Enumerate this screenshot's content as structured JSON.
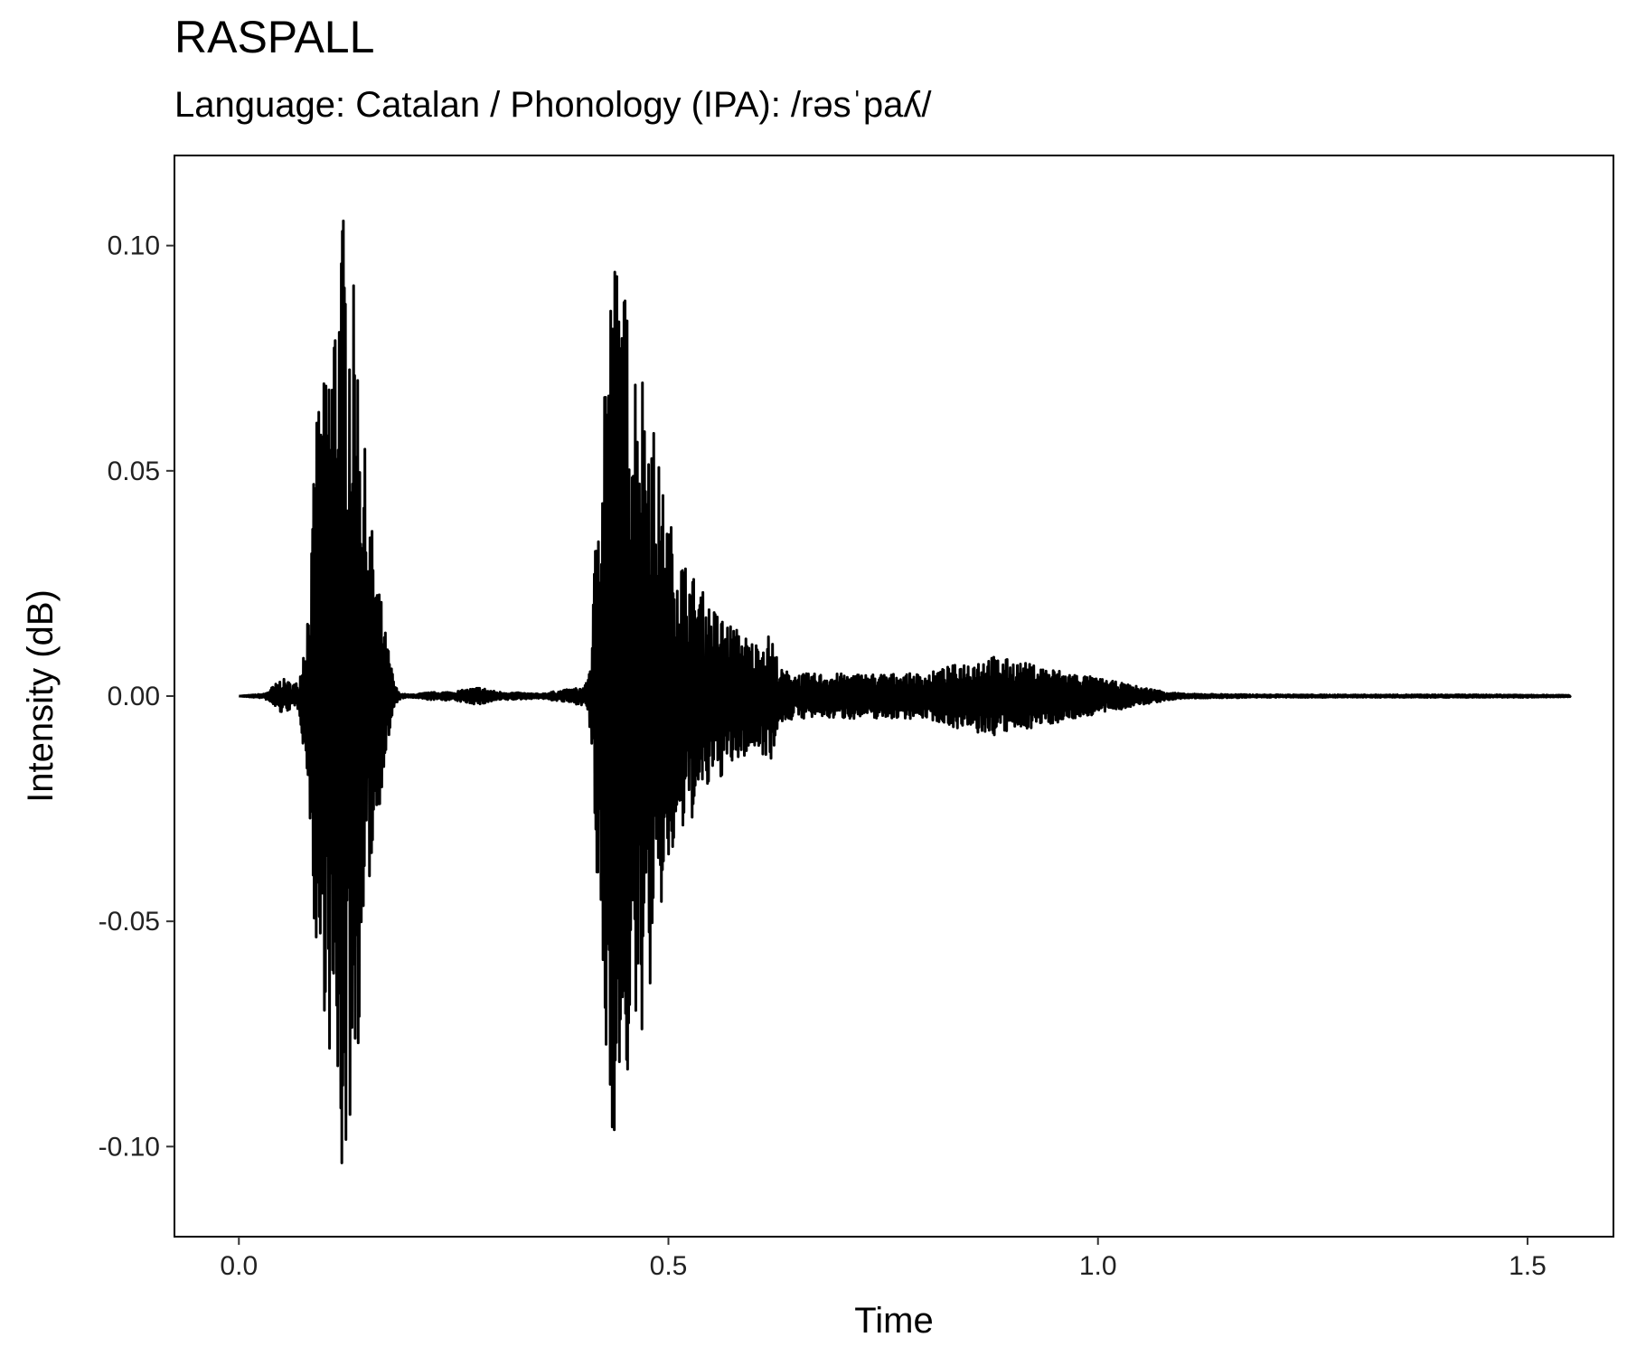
{
  "chart_data": {
    "type": "line",
    "title": "RASPALL",
    "subtitle": "Language: Catalan / Phonology (IPA): /rəsˈpaʎ/",
    "xlabel": "Time",
    "ylabel": "Intensity (dB)",
    "xlim": [
      -0.075,
      1.6
    ],
    "ylim": [
      -0.12,
      0.12
    ],
    "xticks": [
      0.0,
      0.5,
      1.0,
      1.5
    ],
    "xtick_labels": [
      "0.0",
      "0.5",
      "1.0",
      "1.5"
    ],
    "yticks": [
      -0.1,
      -0.05,
      0.0,
      0.05,
      0.1
    ],
    "ytick_labels": [
      "-0.10",
      "-0.05",
      "0.00",
      "0.05",
      "0.10"
    ],
    "grid": false,
    "line_color": "#000000",
    "series": [
      {
        "x": [
          0.0,
          0.03,
          0.05,
          0.06,
          0.07,
          0.08,
          0.085,
          0.09,
          0.095,
          0.1,
          0.105,
          0.11,
          0.115,
          0.12,
          0.125,
          0.13,
          0.135,
          0.14,
          0.145,
          0.15,
          0.16,
          0.17,
          0.18,
          0.185,
          0.19,
          0.2,
          0.22,
          0.25,
          0.28,
          0.3,
          0.35,
          0.4,
          0.405,
          0.41,
          0.415,
          0.42,
          0.425,
          0.43,
          0.435,
          0.44,
          0.445,
          0.45,
          0.455,
          0.46,
          0.47,
          0.48,
          0.49,
          0.5,
          0.52,
          0.55,
          0.58,
          0.6,
          0.62,
          0.63,
          0.65,
          0.7,
          0.75,
          0.8,
          0.85,
          0.875,
          0.9,
          0.95,
          1.0,
          1.05,
          1.08,
          1.1,
          1.2,
          1.3,
          1.4,
          1.5,
          1.55
        ],
        "y_max": [
          0.0,
          0.0005,
          0.004,
          0.003,
          0.003,
          0.02,
          0.035,
          0.065,
          0.07,
          0.07,
          0.08,
          0.09,
          0.1,
          0.11,
          0.105,
          0.095,
          0.09,
          0.075,
          0.06,
          0.045,
          0.03,
          0.015,
          0.004,
          0.001,
          0.0005,
          0.0003,
          0.0008,
          0.001,
          0.002,
          0.001,
          0.0005,
          0.002,
          0.003,
          0.01,
          0.035,
          0.06,
          0.08,
          0.09,
          0.098,
          0.1,
          0.095,
          0.09,
          0.085,
          0.08,
          0.075,
          0.065,
          0.05,
          0.04,
          0.03,
          0.02,
          0.015,
          0.012,
          0.014,
          0.006,
          0.005,
          0.005,
          0.005,
          0.005,
          0.008,
          0.009,
          0.008,
          0.006,
          0.004,
          0.002,
          0.001,
          0.0005,
          0.0003,
          0.0003,
          0.0003,
          0.0003,
          0.0002
        ],
        "y_min": [
          0.0,
          -0.0005,
          -0.004,
          -0.003,
          -0.003,
          -0.02,
          -0.035,
          -0.065,
          -0.07,
          -0.07,
          -0.08,
          -0.09,
          -0.1,
          -0.11,
          -0.105,
          -0.095,
          -0.09,
          -0.075,
          -0.06,
          -0.045,
          -0.03,
          -0.015,
          -0.004,
          -0.001,
          -0.0005,
          -0.0003,
          -0.0008,
          -0.001,
          -0.002,
          -0.001,
          -0.0005,
          -0.002,
          -0.003,
          -0.01,
          -0.035,
          -0.06,
          -0.08,
          -0.09,
          -0.098,
          -0.1,
          -0.095,
          -0.09,
          -0.085,
          -0.08,
          -0.075,
          -0.065,
          -0.05,
          -0.04,
          -0.03,
          -0.02,
          -0.015,
          -0.012,
          -0.014,
          -0.006,
          -0.005,
          -0.005,
          -0.005,
          -0.005,
          -0.008,
          -0.009,
          -0.008,
          -0.006,
          -0.004,
          -0.002,
          -0.001,
          -0.0005,
          -0.0003,
          -0.0003,
          -0.0003,
          -0.0003,
          -0.0002
        ]
      }
    ]
  }
}
